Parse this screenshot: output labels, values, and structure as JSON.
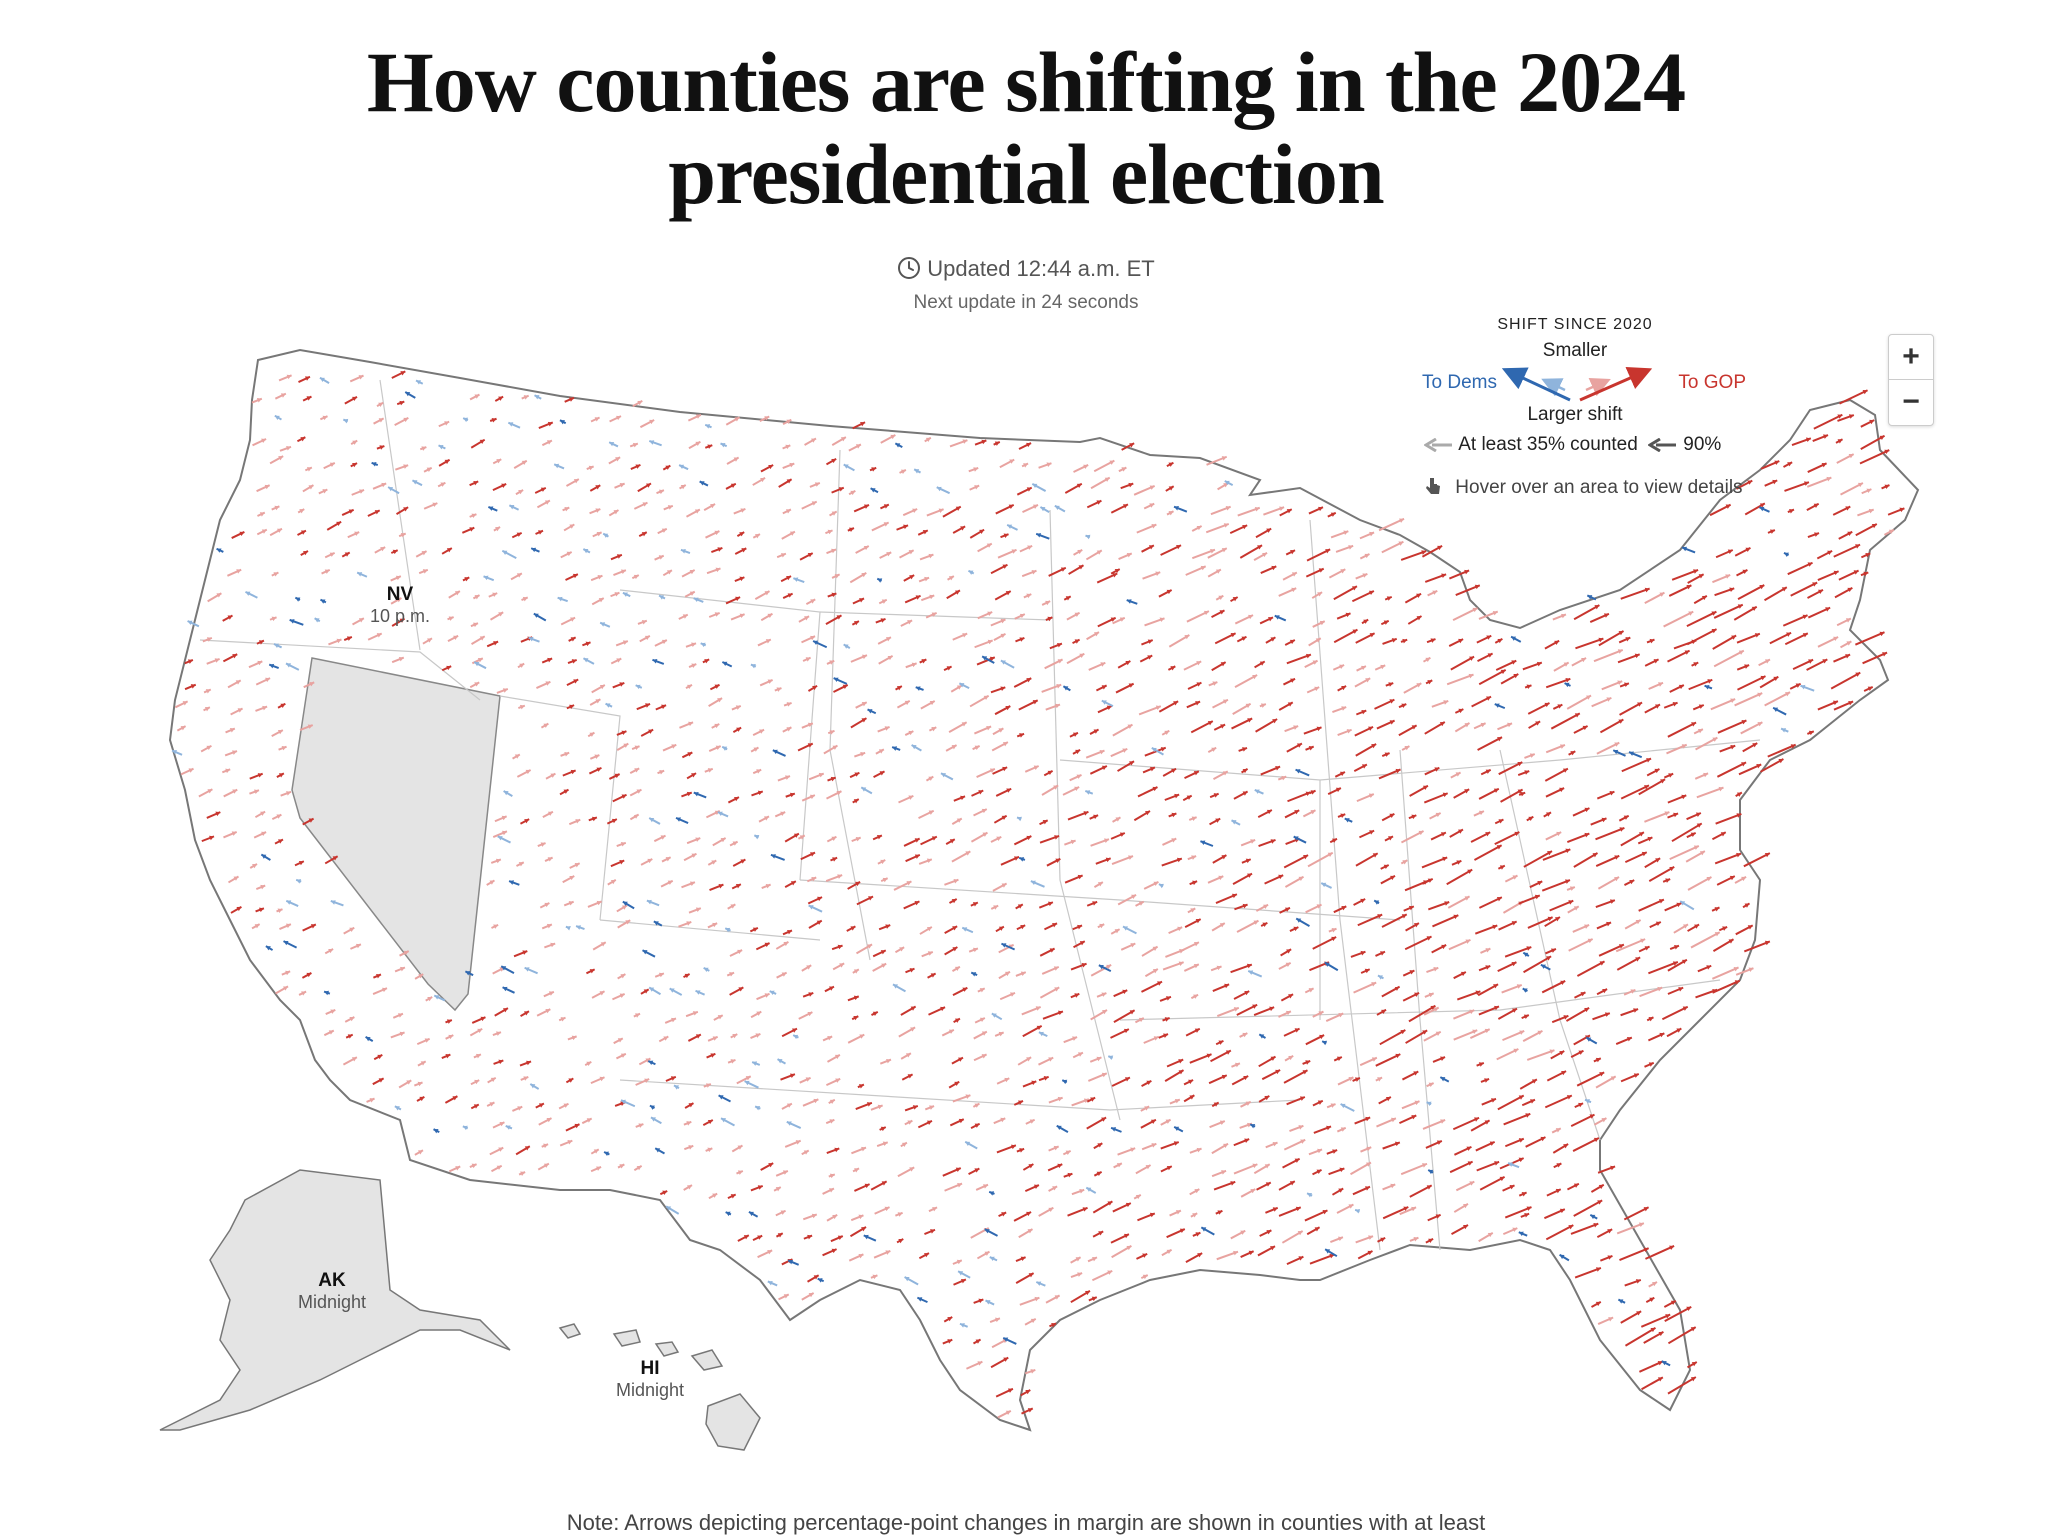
{
  "headline": {
    "line1": "How counties are shifting in the 2024",
    "line2": "presidential election"
  },
  "status": {
    "updated": "Updated 12:44 a.m. ET",
    "next_update": "Next update in 24 seconds"
  },
  "legend": {
    "title": "SHIFT SINCE 2020",
    "smaller": "Smaller",
    "larger": "Larger shift",
    "to_dems": "To Dems",
    "to_gop": "To GOP",
    "counted_35": "At least 35% counted",
    "counted_90": "90%",
    "hover_hint": "Hover over an area to view details",
    "colors": {
      "dem": "#2f68b0",
      "gop": "#c8352e",
      "dem_light": "#8fb4dc",
      "gop_light": "#e8a3a0"
    }
  },
  "zoom": {
    "in": "+",
    "out": "−"
  },
  "pending_states": [
    {
      "abbr": "NV",
      "poll_close": "10 p.m."
    },
    {
      "abbr": "AK",
      "poll_close": "Midnight"
    },
    {
      "abbr": "HI",
      "poll_close": "Midnight"
    }
  ],
  "note": "Note: Arrows depicting percentage-point changes in margin are shown in counties with at least"
}
